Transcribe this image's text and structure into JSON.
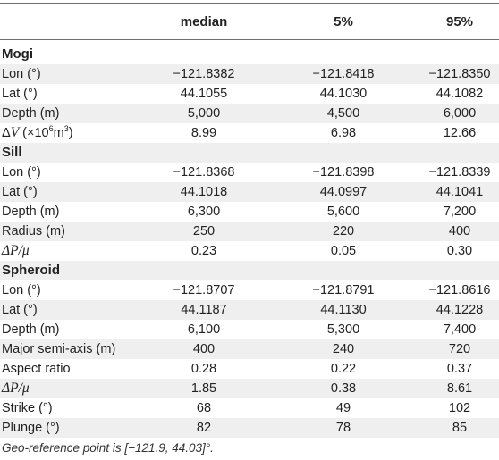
{
  "header": {
    "median": "median",
    "p5": "5%",
    "p95": "95%"
  },
  "sections": [
    {
      "title": "Mogi",
      "rows": [
        {
          "label": "Lon (°)",
          "median": "−121.8382",
          "p5": "−121.8418",
          "p95": "−121.8350"
        },
        {
          "label": "Lat (°)",
          "median": "44.1055",
          "p5": "44.1030",
          "p95": "44.1082"
        },
        {
          "label": "Depth (m)",
          "median": "5,000",
          "p5": "4,500",
          "p95": "6,000"
        },
        {
          "label_prefix": "Δ",
          "label_var": "V",
          "label_suffix": " (×10",
          "label_sup1": "6",
          "label_unit": "m",
          "label_sup2": "3",
          "label_close": ")",
          "median": "8.99",
          "p5": "6.98",
          "p95": "12.66"
        }
      ]
    },
    {
      "title": "Sill",
      "rows": [
        {
          "label": "Lon (°)",
          "median": "−121.8368",
          "p5": "−121.8398",
          "p95": "−121.8339"
        },
        {
          "label": "Lat (°)",
          "median": "44.1018",
          "p5": "44.0997",
          "p95": "44.1041"
        },
        {
          "label": "Depth (m)",
          "median": "6,300",
          "p5": "5,600",
          "p95": "7,200"
        },
        {
          "label": "Radius (m)",
          "median": "250",
          "p5": "220",
          "p95": "400"
        },
        {
          "label_math": "ΔP/μ",
          "median": "0.23",
          "p5": "0.05",
          "p95": "0.30"
        }
      ]
    },
    {
      "title": "Spheroid",
      "rows": [
        {
          "label": "Lon (°)",
          "median": "−121.8707",
          "p5": "−121.8791",
          "p95": "−121.8616"
        },
        {
          "label": "Lat (°)",
          "median": "44.1187",
          "p5": "44.1130",
          "p95": "44.1228"
        },
        {
          "label": "Depth (m)",
          "median": "6,100",
          "p5": "5,300",
          "p95": "7,400"
        },
        {
          "label": "Major semi-axis (m)",
          "median": "400",
          "p5": "240",
          "p95": "720"
        },
        {
          "label": "Aspect ratio",
          "median": "0.28",
          "p5": "0.22",
          "p95": "0.37"
        },
        {
          "label_math": "ΔP/μ",
          "median": "1.85",
          "p5": "0.38",
          "p95": "8.61"
        },
        {
          "label": "Strike (°)",
          "median": "68",
          "p5": "49",
          "p95": "102"
        },
        {
          "label": "Plunge (°)",
          "median": "82",
          "p5": "78",
          "p95": "85"
        }
      ]
    }
  ],
  "footnote": "Geo-reference point is [−121.9, 44.03]°."
}
